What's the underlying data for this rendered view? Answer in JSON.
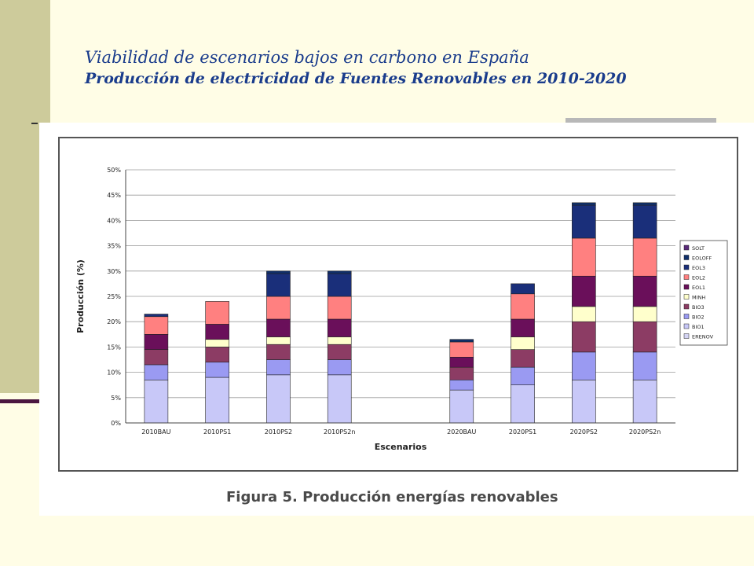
{
  "slide": {
    "title": "Viabilidad de escenarios bajos en carbono en España",
    "subtitle": "Producción de electricidad de Fuentes Renovables en 2010-2020",
    "caption": "Figura 5. Producción energías renovables"
  },
  "chart_data": {
    "type": "bar",
    "stacked": true,
    "xlabel": "Escenarios",
    "ylabel": "Producción (%)",
    "ylim": [
      0,
      50
    ],
    "yticks": [
      "0%",
      "5%",
      "10%",
      "15%",
      "20%",
      "25%",
      "30%",
      "35%",
      "40%",
      "45%",
      "50%"
    ],
    "grid": true,
    "legend_position": "right",
    "categories": [
      "2010BAU",
      "2010PS1",
      "2010PS2",
      "2010PS2n",
      "",
      "2020BAU",
      "2020PS1",
      "2020PS2",
      "2020PS2n"
    ],
    "series": [
      {
        "name": "ERENOV",
        "color": "#d4d4f4",
        "values": [
          0,
          0,
          0,
          0,
          null,
          0,
          0,
          0,
          0
        ]
      },
      {
        "name": "BIO1",
        "color": "#c8c8f8",
        "values": [
          8.5,
          9,
          9.5,
          9.5,
          null,
          6.5,
          7.5,
          8.5,
          8.5
        ]
      },
      {
        "name": "BIO2",
        "color": "#9a9af2",
        "values": [
          3,
          3,
          3,
          3,
          null,
          2,
          3.5,
          5.5,
          5.5
        ]
      },
      {
        "name": "BIO3",
        "color": "#8c3c64",
        "values": [
          3,
          3,
          3,
          3,
          null,
          2.5,
          3.5,
          6,
          6
        ]
      },
      {
        "name": "MINH",
        "color": "#ffffcc",
        "values": [
          0,
          1.5,
          1.5,
          1.5,
          null,
          0,
          2.5,
          3,
          3
        ]
      },
      {
        "name": "EOL1",
        "color": "#6a0f5a",
        "values": [
          3,
          3,
          3.5,
          3.5,
          null,
          2,
          3.5,
          6,
          6
        ]
      },
      {
        "name": "EOL2",
        "color": "#ff8080",
        "values": [
          3.5,
          4.5,
          4.5,
          4.5,
          null,
          3,
          5,
          7.5,
          7.5
        ]
      },
      {
        "name": "EOL3",
        "color": "#1a2f7a",
        "values": [
          0.5,
          0,
          4.5,
          4.5,
          null,
          0,
          2,
          6.5,
          6.5
        ]
      },
      {
        "name": "EOLOFF",
        "color": "#0f2f6a",
        "values": [
          0,
          0,
          0.5,
          0.5,
          null,
          0.5,
          0,
          0.5,
          0.5
        ]
      },
      {
        "name": "SOLT",
        "color": "#5a2a7a",
        "values": [
          0,
          0,
          0,
          0,
          null,
          0,
          0,
          0,
          0
        ]
      }
    ],
    "legend_order": [
      "SOLT",
      "EOLOFF",
      "EOL3",
      "EOL2",
      "EOL1",
      "MINH",
      "BIO3",
      "BIO2",
      "BIO1",
      "ERENOV"
    ]
  }
}
